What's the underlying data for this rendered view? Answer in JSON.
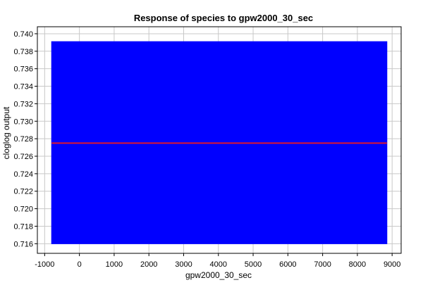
{
  "chart_data": {
    "type": "area",
    "title": "Response of species to gpw2000_30_sec",
    "xlabel": "gpw2000_30_sec",
    "ylabel": "cloglog output",
    "xlim": [
      -1210,
      9260
    ],
    "ylim": [
      0.7149,
      0.7408
    ],
    "xticks": [
      -1000,
      0,
      1000,
      2000,
      3000,
      4000,
      5000,
      6000,
      7000,
      8000,
      9000
    ],
    "xtick_labels": [
      "-1000",
      "0",
      "1000",
      "2000",
      "3000",
      "4000",
      "5000",
      "6000",
      "7000",
      "8000",
      "9000"
    ],
    "yticks": [
      0.716,
      0.718,
      0.72,
      0.722,
      0.724,
      0.726,
      0.728,
      0.73,
      0.732,
      0.734,
      0.736,
      0.738,
      0.74
    ],
    "ytick_labels": [
      "0.716",
      "0.718",
      "0.720",
      "0.722",
      "0.724",
      "0.726",
      "0.728",
      "0.730",
      "0.732",
      "0.734",
      "0.736",
      "0.738",
      "0.740"
    ],
    "grid": true,
    "legend": "none",
    "series": [
      {
        "role": "band",
        "color": "#0000ff",
        "x": [
          -800,
          8850
        ],
        "lower": [
          0.716,
          0.716
        ],
        "upper": [
          0.7391,
          0.7391
        ]
      },
      {
        "role": "mean",
        "color": "#e0162b",
        "x": [
          -800,
          8850
        ],
        "values": [
          0.7275,
          0.7275
        ]
      }
    ]
  }
}
